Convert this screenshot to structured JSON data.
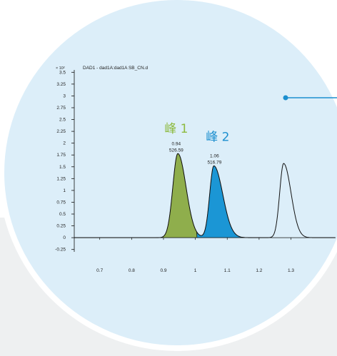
{
  "colors": {
    "page_bg": "#ffffff",
    "gray_panel": "#eef0f1",
    "circle_fill": "#dceef9",
    "circle_ring": "#ffffff",
    "peak1_fill": "#8fae4c",
    "peak2_fill": "#1b96d5",
    "peak1_label": "#8dba3f",
    "peak2_label": "#1c8fcf",
    "pointer": "#1c8fcf",
    "trace": "#111111"
  },
  "chart_data": {
    "type": "line",
    "title": "DAD1 - dad1A:dad1A SB_CN.d",
    "y_exponent_label": "× 10²",
    "xlabel": "",
    "ylabel": "",
    "xlim": [
      0.62,
      1.44
    ],
    "ylim": [
      -0.3,
      3.55
    ],
    "x_ticks": [
      "0.7",
      "0.8",
      "0.9",
      "1",
      "1.1",
      "1.2",
      "1.3"
    ],
    "x_tick_values": [
      0.7,
      0.8,
      0.9,
      1.0,
      1.1,
      1.2,
      1.3
    ],
    "y_ticks": [
      "3.5",
      "3.25",
      "3",
      "2.75",
      "2.5",
      "2.25",
      "2",
      "1.75",
      "1.5",
      "1.25",
      "1",
      "0.75",
      "0.5",
      "0.25",
      "0",
      "-0.25"
    ],
    "y_tick_values": [
      3.5,
      3.25,
      3.0,
      2.75,
      2.5,
      2.25,
      2.0,
      1.75,
      1.5,
      1.25,
      1.0,
      0.75,
      0.5,
      0.25,
      0.0,
      -0.25
    ],
    "baseline_value": 0,
    "series": [
      {
        "peaks": [
          {
            "center": 0.945,
            "height": 1.78,
            "sigma": 0.019,
            "skew": 0.35
          },
          {
            "center": 1.058,
            "height": 1.52,
            "sigma": 0.018,
            "skew": 0.55
          },
          {
            "center": 1.277,
            "height": 1.57,
            "sigma": 0.016,
            "skew": 0.45
          }
        ]
      }
    ],
    "filled_regions": [
      {
        "label": "峰 1",
        "x_start": 0.875,
        "x_end": 1.005,
        "color": "#8fae4c"
      },
      {
        "label": "峰 2",
        "x_start": 1.005,
        "x_end": 1.205,
        "color": "#1b96d5"
      }
    ],
    "annotations": [
      {
        "label": "峰 1",
        "x": 0.94,
        "y": 2.22,
        "color": "#8dba3f",
        "size": "large"
      },
      {
        "label": "峰 2",
        "x": 1.07,
        "y": 2.05,
        "color": "#1c8fcf",
        "size": "large"
      },
      {
        "line1": "0.94",
        "line2": "526.59",
        "x": 0.94,
        "y": 1.96
      },
      {
        "line1": "1.06",
        "line2": "516.79",
        "x": 1.06,
        "y": 1.7
      }
    ]
  }
}
